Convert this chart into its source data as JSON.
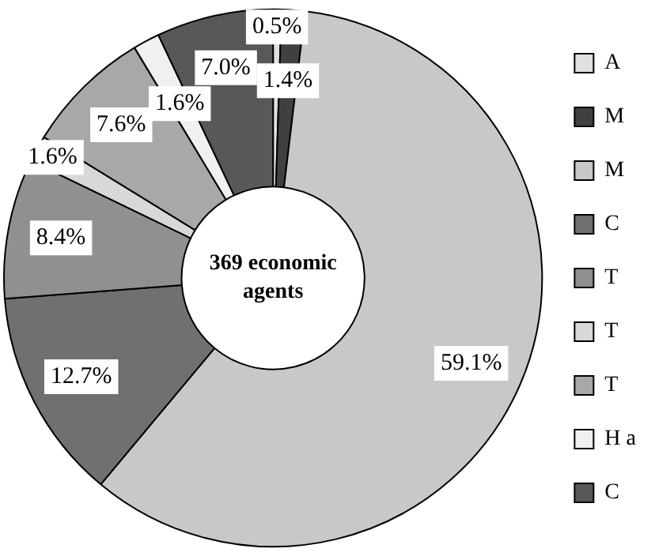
{
  "chart_data": {
    "type": "donut",
    "title": "369 economic agents",
    "categories": [
      "A",
      "M",
      "M",
      "C",
      "T",
      "T",
      "T",
      "H a",
      "C"
    ],
    "values": [
      0.5,
      1.4,
      59.1,
      12.7,
      8.4,
      1.6,
      7.6,
      1.6,
      7.0
    ],
    "value_labels": [
      "0.5%",
      "1.4%",
      "59.1%",
      "12.7%",
      "8.4%",
      "1.6%",
      "7.6%",
      "1.6%",
      "7.0%"
    ],
    "colors": [
      "#e0e0e0",
      "#404040",
      "#c8c8c8",
      "#707070",
      "#909090",
      "#d8d8d8",
      "#a8a8a8",
      "#f0f0f0",
      "#585858"
    ],
    "legend": "right"
  }
}
